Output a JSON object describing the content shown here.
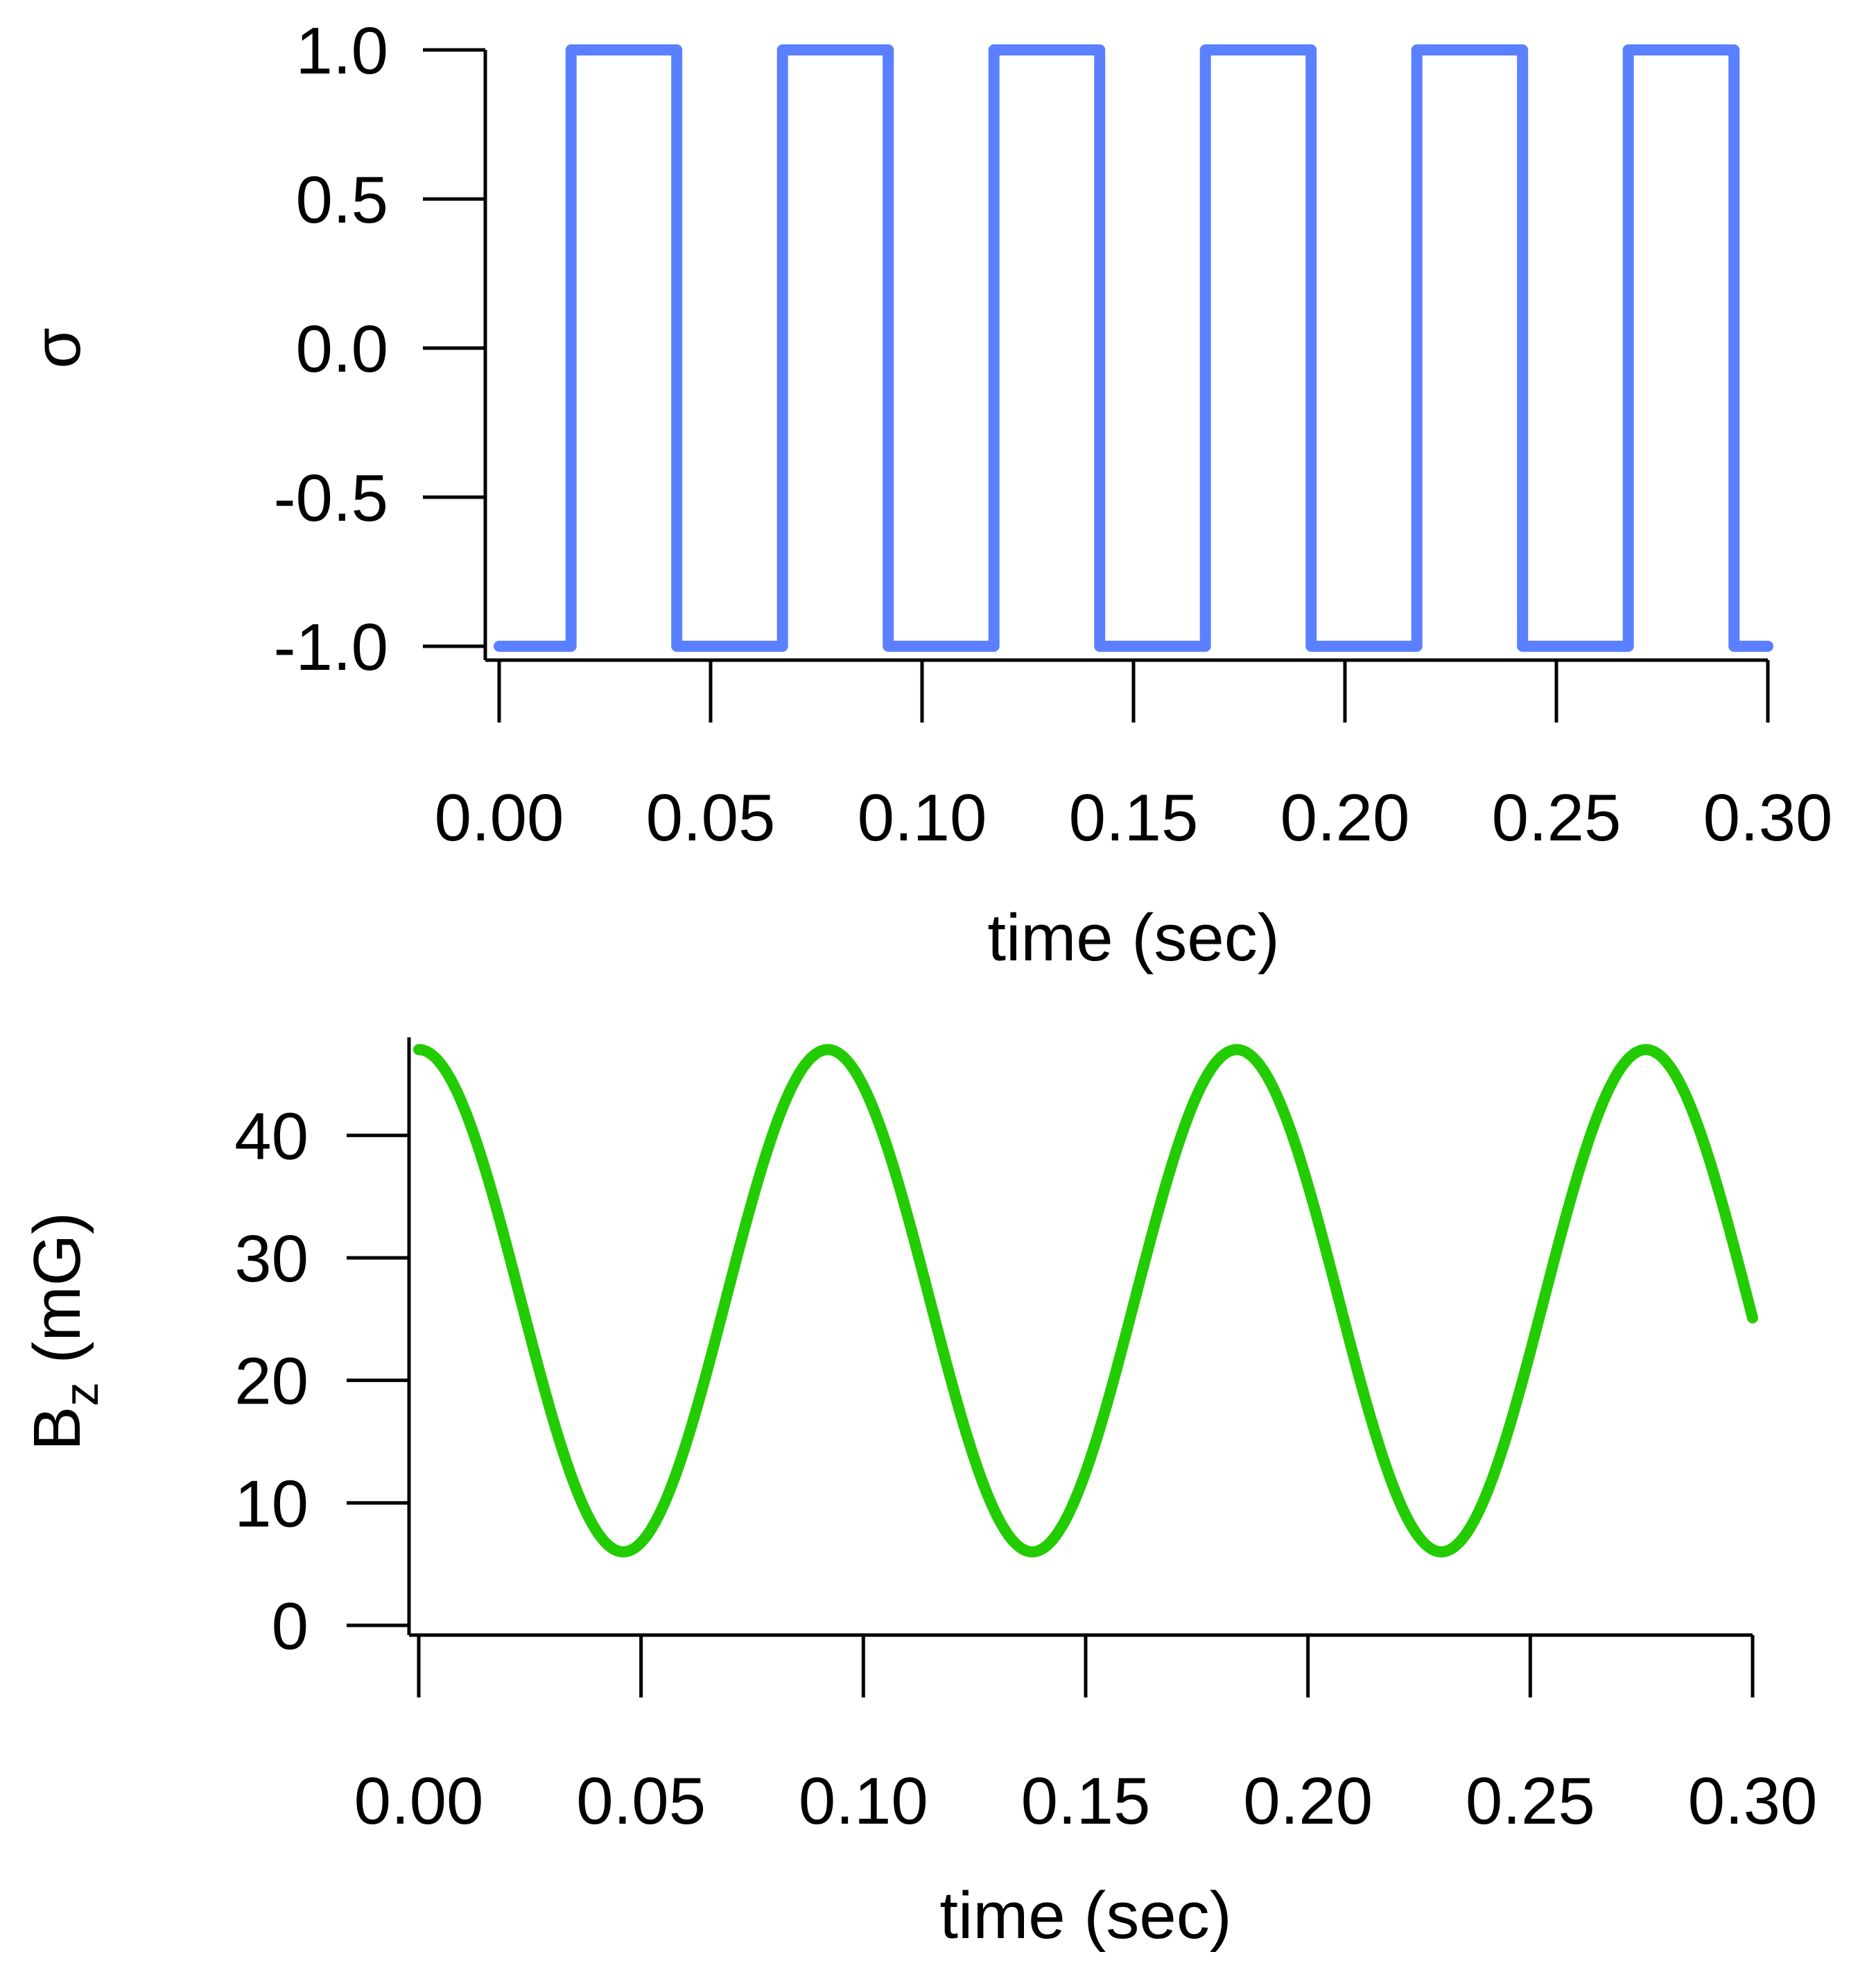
{
  "chart_data": [
    {
      "id": "sigma",
      "type": "line",
      "title": "",
      "xlabel": "time (sec)",
      "ylabel": "σ",
      "xlim": [
        0.0,
        0.3
      ],
      "ylim": [
        -1.0,
        1.0
      ],
      "xticks": [
        0.0,
        0.05,
        0.1,
        0.15,
        0.2,
        0.25,
        0.3
      ],
      "xtick_labels": [
        "0.00",
        "0.05",
        "0.10",
        "0.15",
        "0.20",
        "0.25",
        "0.30"
      ],
      "yticks": [
        1.0,
        0.5,
        0.0,
        -0.5,
        -1.0
      ],
      "ytick_labels": [
        "1.0",
        "0.5",
        "0.0",
        "-0.5",
        "-1.0"
      ],
      "grid": false,
      "series": [
        {
          "name": "sigma",
          "color": "#5a80ff",
          "x": [
            0.0,
            0.017,
            0.017,
            0.042,
            0.042,
            0.067,
            0.067,
            0.092,
            0.092,
            0.117,
            0.117,
            0.142,
            0.142,
            0.167,
            0.167,
            0.192,
            0.192,
            0.217,
            0.217,
            0.242,
            0.242,
            0.267,
            0.267,
            0.292,
            0.292,
            0.3
          ],
          "y": [
            -1,
            -1,
            1,
            1,
            -1,
            -1,
            1,
            1,
            -1,
            -1,
            1,
            1,
            -1,
            -1,
            1,
            1,
            -1,
            -1,
            1,
            1,
            -1,
            -1,
            1,
            1,
            -1,
            -1
          ]
        }
      ]
    },
    {
      "id": "bz",
      "type": "line",
      "title": "",
      "xlabel": "time (sec)",
      "ylabel": "B",
      "ylabel_subscript": "z",
      "ylabel_suffix": " (mG)",
      "xlim": [
        0.0,
        0.3
      ],
      "ylim": [
        0,
        48
      ],
      "xticks": [
        0.0,
        0.05,
        0.1,
        0.15,
        0.2,
        0.25,
        0.3
      ],
      "xtick_labels": [
        "0.00",
        "0.05",
        "0.10",
        "0.15",
        "0.20",
        "0.25",
        "0.30"
      ],
      "yticks": [
        0,
        10,
        20,
        30,
        40
      ],
      "ytick_labels": [
        "0",
        "10",
        "20",
        "30",
        "40"
      ],
      "grid": false,
      "series": [
        {
          "name": "Bz",
          "color": "#22cc00",
          "function": "cosine",
          "offset": 26.5,
          "amplitude": 20.5,
          "period": 0.092,
          "x_range": [
            0.0,
            0.3
          ]
        }
      ]
    }
  ]
}
